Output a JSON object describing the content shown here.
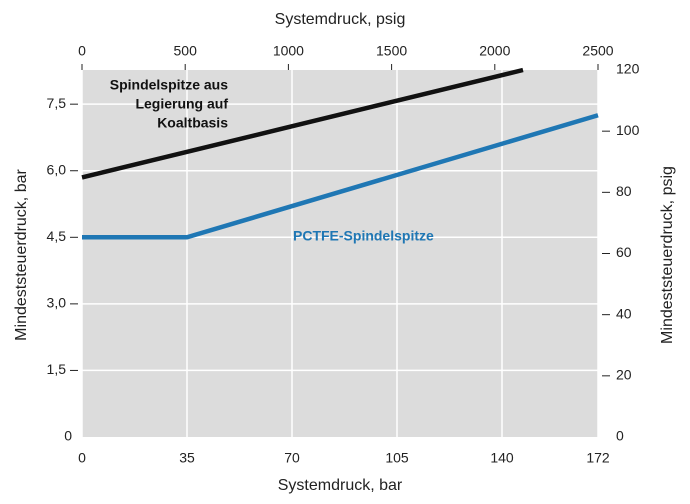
{
  "chart_data": {
    "type": "line",
    "xlabel": "Systemdruck, bar",
    "x2label": "Systemdruck, psig",
    "ylabel": "Mindeststeuerdruck, bar",
    "y2label": "Mindeststeuerdruck, psig",
    "xlim": [
      0,
      172
    ],
    "xticks": [
      0,
      35,
      70,
      105,
      140,
      172
    ],
    "x2lim": [
      0,
      2500
    ],
    "x2ticks": [
      0,
      500,
      1000,
      1500,
      2000,
      2500
    ],
    "ylim": [
      0,
      8.27
    ],
    "yticks": [
      0,
      {
        "value": 1.5,
        "label": "1,5"
      },
      {
        "value": 3,
        "label": "3,0"
      },
      {
        "value": 4.5,
        "label": "4,5"
      },
      {
        "value": 6,
        "label": "6,0"
      },
      {
        "value": 7.5,
        "label": "7,5"
      }
    ],
    "y2lim": [
      0,
      120
    ],
    "y2ticks": [
      0,
      20,
      40,
      60,
      80,
      100,
      120
    ],
    "grid": true,
    "series": [
      {
        "color": "#111111",
        "x": [
          0,
          147
        ],
        "values": [
          5.85,
          8.27
        ]
      },
      {
        "color": "#1f77b4",
        "x": [
          0,
          35,
          172
        ],
        "values": [
          4.5,
          4.5,
          7.25
        ]
      }
    ],
    "annotations": [
      {
        "lines": [
          "Spindelspitze aus",
          "Legierung auf",
          "Koaltbasis"
        ],
        "color": "#111111"
      },
      {
        "lines": [
          "PCTFE-Spindelspitze"
        ],
        "color": "#1f77b4"
      }
    ]
  }
}
